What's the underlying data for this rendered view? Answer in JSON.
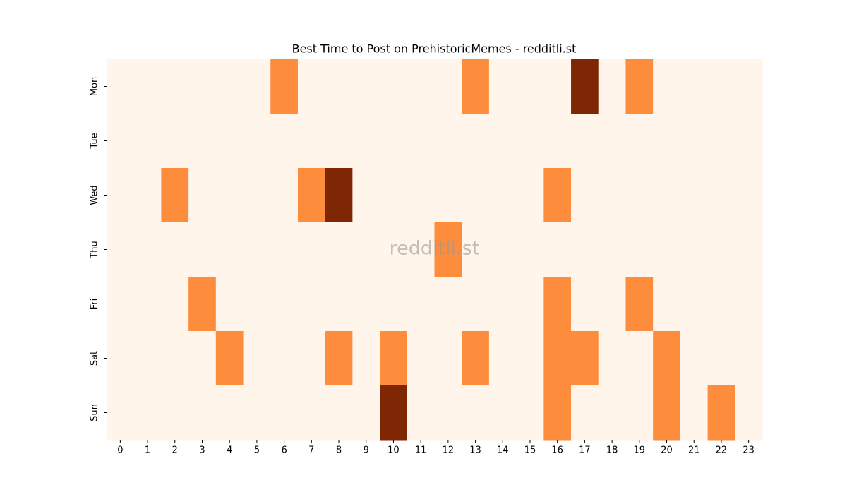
{
  "chart_data": {
    "type": "heatmap",
    "title": "Best Time to Post on PrehistoricMemes - redditli.st",
    "watermark": "redditli.st",
    "x": [
      0,
      1,
      2,
      3,
      4,
      5,
      6,
      7,
      8,
      9,
      10,
      11,
      12,
      13,
      14,
      15,
      16,
      17,
      18,
      19,
      20,
      21,
      22,
      23
    ],
    "y_categories": [
      "Mon",
      "Tue",
      "Wed",
      "Thu",
      "Fri",
      "Sat",
      "Sun"
    ],
    "values": [
      [
        0,
        0,
        0,
        0,
        0,
        0,
        1,
        0,
        0,
        0,
        0,
        0,
        0,
        1,
        0,
        0,
        0,
        2,
        0,
        1,
        0,
        0,
        0,
        0
      ],
      [
        0,
        0,
        0,
        0,
        0,
        0,
        0,
        0,
        0,
        0,
        0,
        0,
        0,
        0,
        0,
        0,
        0,
        0,
        0,
        0,
        0,
        0,
        0,
        0
      ],
      [
        0,
        0,
        1,
        0,
        0,
        0,
        0,
        1,
        2,
        0,
        0,
        0,
        0,
        0,
        0,
        0,
        1,
        0,
        0,
        0,
        0,
        0,
        0,
        0
      ],
      [
        0,
        0,
        0,
        0,
        0,
        0,
        0,
        0,
        0,
        0,
        0,
        0,
        1,
        0,
        0,
        0,
        0,
        0,
        0,
        0,
        0,
        0,
        0,
        0
      ],
      [
        0,
        0,
        0,
        1,
        0,
        0,
        0,
        0,
        0,
        0,
        0,
        0,
        0,
        0,
        0,
        0,
        1,
        0,
        0,
        1,
        0,
        0,
        0,
        0
      ],
      [
        0,
        0,
        0,
        0,
        1,
        0,
        0,
        0,
        1,
        0,
        1,
        0,
        0,
        1,
        0,
        0,
        1,
        1,
        0,
        0,
        1,
        0,
        0,
        0
      ],
      [
        0,
        0,
        0,
        0,
        0,
        0,
        0,
        0,
        0,
        0,
        2,
        0,
        0,
        0,
        0,
        0,
        1,
        0,
        0,
        0,
        1,
        0,
        1,
        0
      ]
    ],
    "colormap": [
      "#fff5eb",
      "#fd8d3c",
      "#7f2704"
    ]
  }
}
